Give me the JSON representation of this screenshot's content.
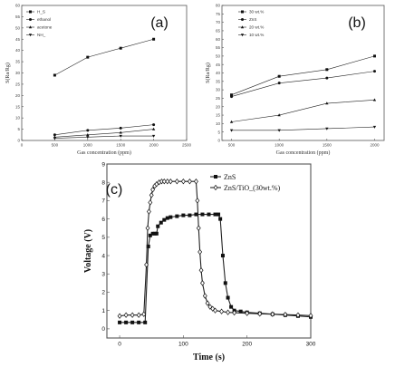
{
  "chart_data": [
    {
      "panel": "(a)",
      "type": "line",
      "xlabel": "Gas concentration (ppm)",
      "ylabel": "S(Ra/Rg)",
      "xlim": [
        0,
        2500
      ],
      "ylim": [
        0,
        60
      ],
      "xticks": [
        0,
        500,
        1000,
        1500,
        2000,
        2500
      ],
      "yticks": [
        0,
        5,
        10,
        15,
        20,
        25,
        30,
        35,
        40,
        45,
        50,
        55,
        60
      ],
      "x": [
        500,
        1000,
        1500,
        2000
      ],
      "legend_position": "top-left",
      "series": [
        {
          "name": "H_S",
          "marker": "square",
          "values": [
            29,
            37,
            41,
            45
          ]
        },
        {
          "name": "ethanol",
          "marker": "circle",
          "values": [
            2.5,
            4.5,
            5.5,
            7
          ]
        },
        {
          "name": "acetone",
          "marker": "triangle-up",
          "values": [
            1.5,
            2.5,
            3.5,
            5
          ]
        },
        {
          "name": "NH_",
          "marker": "triangle-down",
          "values": [
            1,
            1.5,
            2,
            2
          ]
        }
      ]
    },
    {
      "panel": "(b)",
      "type": "line",
      "xlabel": "Gas concentration (ppm)",
      "ylabel": "S(Ra/Rg)",
      "xlim": [
        400,
        2100
      ],
      "ylim": [
        0,
        80
      ],
      "xticks": [
        500,
        1000,
        1500,
        2000
      ],
      "yticks": [
        0,
        5,
        10,
        15,
        20,
        25,
        30,
        35,
        40,
        45,
        50,
        55,
        60,
        65,
        70,
        75,
        80
      ],
      "x": [
        500,
        1000,
        1500,
        2000
      ],
      "legend_position": "top-left",
      "series": [
        {
          "name": "30 wt.%",
          "marker": "square",
          "values": [
            27,
            38,
            42,
            50
          ]
        },
        {
          "name": "ZnS",
          "marker": "circle",
          "values": [
            26,
            34,
            37,
            41
          ]
        },
        {
          "name": "20 wt.%",
          "marker": "triangle-up",
          "values": [
            11,
            15,
            22,
            24
          ]
        },
        {
          "name": "10 wt.%",
          "marker": "triangle-down",
          "values": [
            6,
            6,
            7,
            8
          ]
        }
      ]
    },
    {
      "panel": "(c)",
      "type": "line",
      "xlabel": "Time (s)",
      "ylabel": "Voltage (V)",
      "xlim": [
        -20,
        300
      ],
      "ylim": [
        -0.5,
        9
      ],
      "xticks": [
        0,
        100,
        200,
        300
      ],
      "yticks": [
        0,
        1,
        2,
        3,
        4,
        5,
        6,
        7,
        8,
        9
      ],
      "legend_position": "top-right",
      "series": [
        {
          "name": "ZnS",
          "marker": "square",
          "x": [
            0,
            10,
            20,
            30,
            40,
            45,
            48,
            52,
            55,
            58,
            60,
            65,
            70,
            75,
            80,
            90,
            100,
            110,
            120,
            130,
            140,
            150,
            155,
            158,
            162,
            166,
            170,
            175,
            180,
            190,
            200,
            220,
            240,
            260,
            280,
            300
          ],
          "values": [
            0.35,
            0.35,
            0.35,
            0.35,
            0.35,
            4.5,
            5.1,
            5.2,
            5.2,
            5.2,
            5.6,
            5.8,
            5.95,
            6.05,
            6.1,
            6.15,
            6.2,
            6.2,
            6.25,
            6.25,
            6.25,
            6.25,
            6.25,
            6.0,
            4.0,
            2.5,
            1.7,
            1.2,
            1.0,
            0.95,
            0.9,
            0.85,
            0.8,
            0.75,
            0.7,
            0.65
          ]
        },
        {
          "name": "ZnS/TiO_(30wt.%)",
          "marker": "diamond",
          "x": [
            0,
            10,
            20,
            30,
            38,
            42,
            44,
            46,
            48,
            50,
            52,
            55,
            58,
            62,
            66,
            70,
            75,
            80,
            90,
            100,
            110,
            120,
            122,
            124,
            126,
            128,
            130,
            134,
            138,
            142,
            146,
            150,
            160,
            170,
            180,
            200,
            220,
            240,
            260,
            280,
            300
          ],
          "values": [
            0.7,
            0.75,
            0.75,
            0.75,
            0.8,
            3.5,
            5.5,
            6.4,
            6.9,
            7.3,
            7.6,
            7.8,
            7.9,
            8.0,
            8.05,
            8.05,
            8.05,
            8.05,
            8.05,
            8.05,
            8.05,
            8.05,
            7.0,
            5.5,
            4.2,
            3.2,
            2.5,
            1.8,
            1.4,
            1.2,
            1.1,
            1.0,
            0.95,
            0.9,
            0.88,
            0.85,
            0.82,
            0.8,
            0.78,
            0.75,
            0.72
          ]
        }
      ]
    }
  ]
}
